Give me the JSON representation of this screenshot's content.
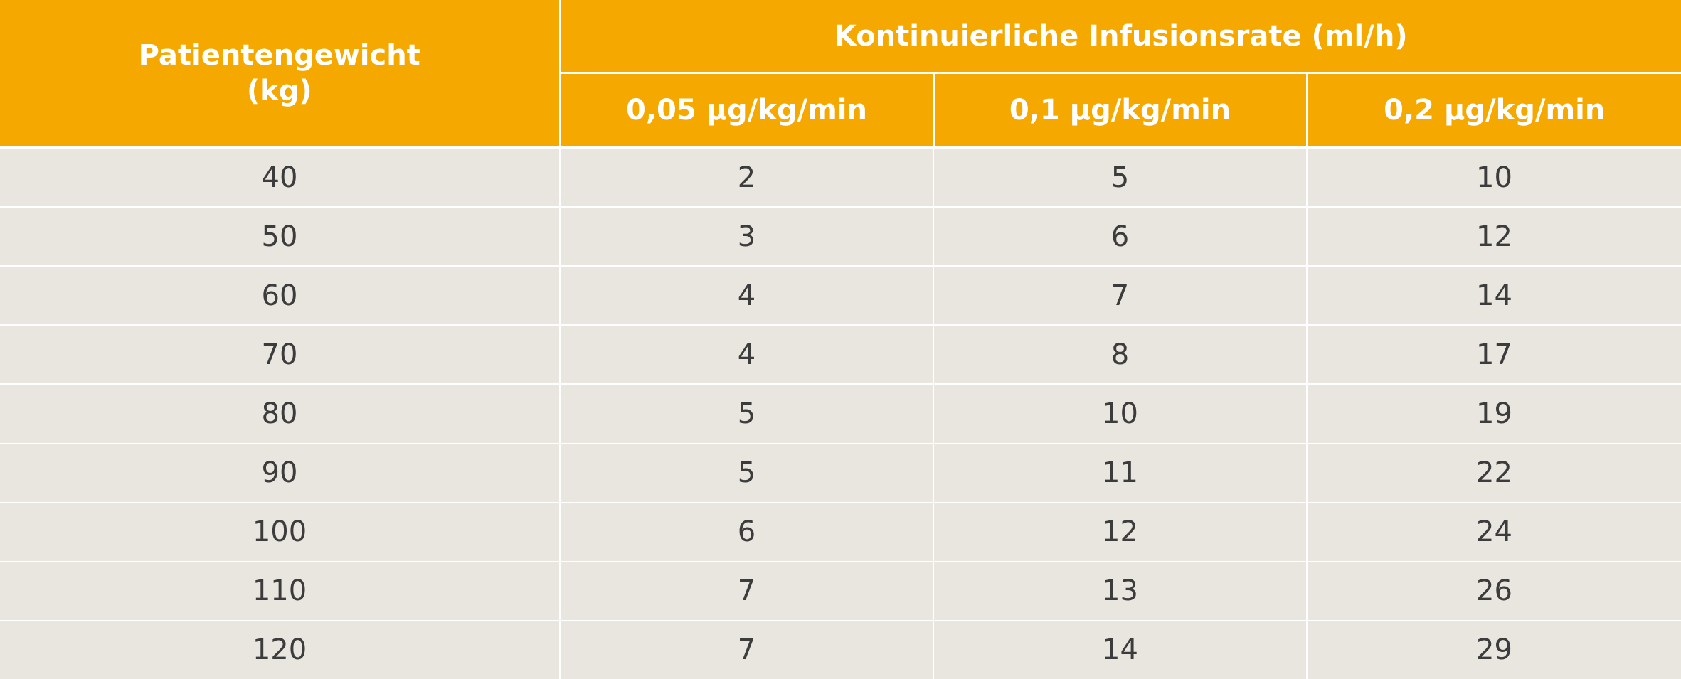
{
  "colors": {
    "header_background": "#f5a800",
    "header_text": "#ffffff",
    "body_background": "#e8e6df",
    "body_text": "#3c3c3c",
    "grid_lines": "#ffffff"
  },
  "header": {
    "weight_line1": "Patientengewicht",
    "weight_line2": "(kg)",
    "rate_group": "Kontinuierliche Infusionsrate (ml/h)",
    "dose_columns": [
      "0,05 µg/kg/min",
      "0,1 µg/kg/min",
      "0,2 µg/kg/min"
    ]
  },
  "rows": [
    [
      "40",
      "2",
      "5",
      "10"
    ],
    [
      "50",
      "3",
      "6",
      "12"
    ],
    [
      "60",
      "4",
      "7",
      "14"
    ],
    [
      "70",
      "4",
      "8",
      "17"
    ],
    [
      "80",
      "5",
      "10",
      "19"
    ],
    [
      "90",
      "5",
      "11",
      "22"
    ],
    [
      "100",
      "6",
      "12",
      "24"
    ],
    [
      "110",
      "7",
      "13",
      "26"
    ],
    [
      "120",
      "7",
      "14",
      "29"
    ]
  ]
}
